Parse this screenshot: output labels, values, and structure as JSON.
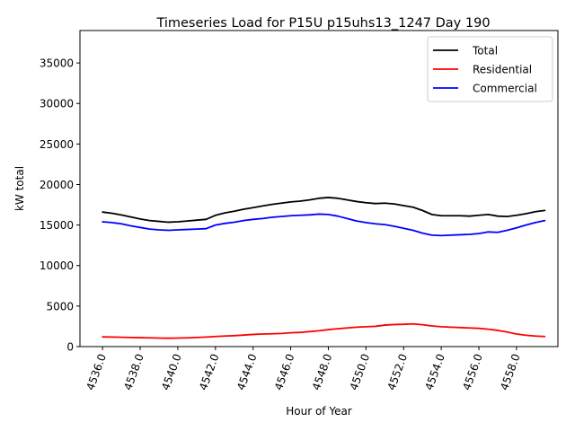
{
  "chart_data": {
    "type": "line",
    "title": "Timeseries Load for P15U p15uhs13_1247  Day 190",
    "xlabel": "Hour of Year",
    "ylabel": "kW total",
    "xlim": [
      4534.8,
      4560.2
    ],
    "ylim": [
      0,
      39000
    ],
    "x_ticks": [
      4536,
      4538,
      4540,
      4542,
      4544,
      4546,
      4548,
      4550,
      4552,
      4554,
      4556,
      4558
    ],
    "x_tick_labels": [
      "4536.0",
      "4538.0",
      "4540.0",
      "4542.0",
      "4544.0",
      "4546.0",
      "4548.0",
      "4550.0",
      "4552.0",
      "4554.0",
      "4556.0",
      "4558.0"
    ],
    "y_ticks": [
      0,
      5000,
      10000,
      15000,
      20000,
      25000,
      30000,
      35000
    ],
    "y_tick_labels": [
      "0",
      "5000",
      "10000",
      "15000",
      "20000",
      "25000",
      "30000",
      "35000"
    ],
    "legend_position": "top-right",
    "grid": false,
    "x": [
      4536,
      4536.5,
      4537,
      4537.5,
      4538,
      4538.5,
      4539,
      4539.5,
      4540,
      4540.5,
      4541,
      4541.5,
      4542,
      4542.5,
      4543,
      4543.5,
      4544,
      4544.5,
      4545,
      4545.5,
      4546,
      4546.5,
      4547,
      4547.5,
      4548,
      4548.5,
      4549,
      4549.5,
      4550,
      4550.5,
      4551,
      4551.5,
      4552,
      4552.5,
      4553,
      4553.5,
      4554,
      4554.5,
      4555,
      4555.5,
      4556,
      4556.5,
      4557,
      4557.5,
      4558,
      4558.5,
      4559,
      4559.5
    ],
    "series": [
      {
        "name": "Total",
        "color": "#000000",
        "values": [
          16600,
          16450,
          16250,
          16000,
          15750,
          15550,
          15450,
          15350,
          15400,
          15500,
          15600,
          15700,
          16200,
          16500,
          16700,
          16950,
          17150,
          17350,
          17550,
          17700,
          17850,
          17950,
          18100,
          18300,
          18400,
          18300,
          18100,
          17900,
          17750,
          17650,
          17700,
          17600,
          17400,
          17200,
          16800,
          16300,
          16150,
          16150,
          16150,
          16100,
          16200,
          16300,
          16100,
          16050,
          16200,
          16400,
          16650,
          16800
        ]
      },
      {
        "name": "Residential",
        "color": "#ff0000",
        "values": [
          1200,
          1180,
          1150,
          1120,
          1100,
          1080,
          1050,
          1030,
          1050,
          1080,
          1120,
          1180,
          1250,
          1300,
          1350,
          1420,
          1500,
          1550,
          1580,
          1620,
          1700,
          1750,
          1850,
          1950,
          2100,
          2200,
          2300,
          2400,
          2450,
          2500,
          2650,
          2720,
          2750,
          2800,
          2700,
          2550,
          2450,
          2400,
          2350,
          2300,
          2250,
          2150,
          2000,
          1800,
          1550,
          1400,
          1300,
          1250
        ]
      },
      {
        "name": "Commercial",
        "color": "#0000ff",
        "values": [
          15400,
          15300,
          15150,
          14900,
          14700,
          14500,
          14400,
          14350,
          14400,
          14450,
          14500,
          14550,
          15000,
          15200,
          15350,
          15550,
          15700,
          15800,
          15950,
          16050,
          16150,
          16200,
          16250,
          16350,
          16300,
          16100,
          15800,
          15500,
          15300,
          15150,
          15050,
          14850,
          14600,
          14350,
          14000,
          13750,
          13700,
          13750,
          13800,
          13850,
          13950,
          14150,
          14100,
          14350,
          14650,
          15000,
          15300,
          15550
        ]
      }
    ]
  }
}
